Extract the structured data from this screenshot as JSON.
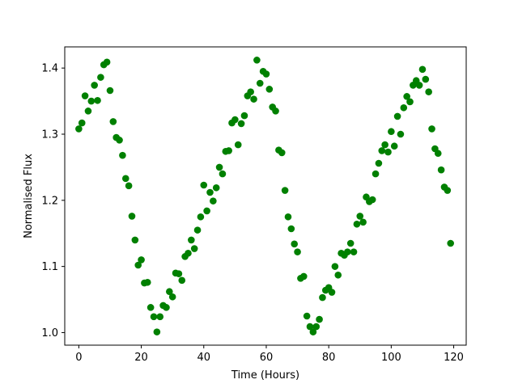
{
  "chart_data": {
    "type": "scatter",
    "title": "",
    "xlabel": "Time (Hours)",
    "ylabel": "Normalised Flux",
    "xlim": [
      -4.5,
      124
    ],
    "ylim": [
      0.981,
      1.432
    ],
    "xticks": [
      0,
      20,
      40,
      60,
      80,
      100,
      120
    ],
    "xtick_labels": [
      "0",
      "20",
      "40",
      "60",
      "80",
      "100",
      "120"
    ],
    "yticks": [
      1.0,
      1.1,
      1.2,
      1.3,
      1.4
    ],
    "ytick_labels": [
      "1.0",
      "1.1",
      "1.2",
      "1.3",
      "1.4"
    ],
    "grid": false,
    "marker_color": "#008000",
    "series": [
      {
        "x": [
          0,
          1,
          2,
          3,
          4,
          5,
          6,
          7,
          8,
          9,
          10,
          11,
          12,
          13,
          14,
          15,
          16,
          17,
          18,
          19,
          20,
          21,
          22,
          23,
          24,
          25,
          26,
          27,
          28,
          29,
          30,
          31,
          32,
          33,
          34,
          35,
          36,
          37,
          38,
          39,
          40,
          41,
          42,
          43,
          44,
          45,
          46,
          47,
          48,
          49,
          50,
          51,
          52,
          53,
          54,
          55,
          56,
          57,
          58,
          59,
          60,
          61,
          62,
          63,
          64,
          65,
          66,
          67,
          68,
          69,
          70,
          71,
          72,
          73,
          74,
          75,
          76,
          77,
          78,
          79,
          80,
          81,
          82,
          83,
          84,
          85,
          86,
          87,
          88,
          89,
          90,
          91,
          92,
          93,
          94,
          95,
          96,
          97,
          98,
          99,
          100,
          101,
          102,
          103,
          104,
          105,
          106,
          107,
          108,
          109,
          110,
          111,
          112,
          113,
          114,
          115,
          116,
          117,
          118,
          119
        ],
        "y": [
          1.308,
          1.317,
          1.358,
          1.335,
          1.35,
          1.374,
          1.351,
          1.386,
          1.405,
          1.409,
          1.366,
          1.319,
          1.295,
          1.291,
          1.268,
          1.233,
          1.222,
          1.176,
          1.14,
          1.102,
          1.11,
          1.075,
          1.076,
          1.038,
          1.024,
          1.001,
          1.024,
          1.041,
          1.038,
          1.062,
          1.054,
          1.09,
          1.089,
          1.079,
          1.115,
          1.12,
          1.14,
          1.127,
          1.155,
          1.175,
          1.223,
          1.184,
          1.212,
          1.199,
          1.219,
          1.25,
          1.24,
          1.274,
          1.275,
          1.317,
          1.322,
          1.284,
          1.316,
          1.328,
          1.358,
          1.364,
          1.353,
          1.412,
          1.377,
          1.395,
          1.391,
          1.368,
          1.341,
          1.335,
          1.276,
          1.272,
          1.215,
          1.175,
          1.157,
          1.134,
          1.122,
          1.082,
          1.085,
          1.025,
          1.009,
          1.001,
          1.009,
          1.02,
          1.053,
          1.064,
          1.068,
          1.061,
          1.1,
          1.087,
          1.12,
          1.117,
          1.122,
          1.135,
          1.122,
          1.164,
          1.176,
          1.167,
          1.205,
          1.198,
          1.201,
          1.24,
          1.256,
          1.275,
          1.284,
          1.273,
          1.304,
          1.282,
          1.327,
          1.3,
          1.34,
          1.357,
          1.349,
          1.374,
          1.381,
          1.374,
          1.398,
          1.383,
          1.364,
          1.308,
          1.278,
          1.271,
          1.246,
          1.22,
          1.215,
          1.135
        ]
      }
    ]
  }
}
